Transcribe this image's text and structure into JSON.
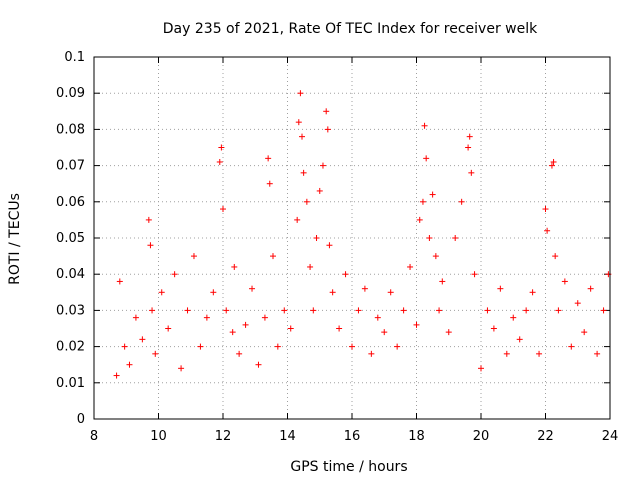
{
  "chart_data": {
    "type": "scatter",
    "title": "Day 235 of 2021, Rate Of TEC Index for receiver welk",
    "xlabel": "GPS time / hours",
    "ylabel": "ROTI / TECUs",
    "xlim": [
      8,
      24
    ],
    "ylim": [
      0,
      0.1
    ],
    "x_ticks": [
      "8",
      "10",
      "12",
      "14",
      "16",
      "18",
      "20",
      "22",
      "24"
    ],
    "y_ticks": [
      "0",
      "0.01",
      "0.02",
      "0.03",
      "0.04",
      "0.05",
      "0.06",
      "0.07",
      "0.08",
      "0.09",
      "0.1"
    ],
    "grid": true,
    "marker": "plus",
    "series": [
      {
        "name": "ROTI",
        "color": "#ff0000",
        "x": [
          8.7,
          8.8,
          8.95,
          9.1,
          9.3,
          9.5,
          9.7,
          9.75,
          9.8,
          9.9,
          10.1,
          10.3,
          10.5,
          10.7,
          10.9,
          11.1,
          11.3,
          11.5,
          11.7,
          11.9,
          11.95,
          12.0,
          12.1,
          12.3,
          12.35,
          12.5,
          12.7,
          12.9,
          13.1,
          13.3,
          13.4,
          13.45,
          13.55,
          13.7,
          13.9,
          14.1,
          14.3,
          14.35,
          14.4,
          14.45,
          14.5,
          14.6,
          14.7,
          14.8,
          14.9,
          15.0,
          15.1,
          15.2,
          15.25,
          15.3,
          15.4,
          15.6,
          15.8,
          16.0,
          16.2,
          16.4,
          16.6,
          16.8,
          17.0,
          17.2,
          17.4,
          17.6,
          17.8,
          18.0,
          18.1,
          18.2,
          18.25,
          18.3,
          18.4,
          18.5,
          18.6,
          18.7,
          18.8,
          19.0,
          19.2,
          19.4,
          19.6,
          19.65,
          19.7,
          19.8,
          20.0,
          20.2,
          20.4,
          20.6,
          20.8,
          21.0,
          21.2,
          21.4,
          21.6,
          21.8,
          22.0,
          22.05,
          22.2,
          22.25,
          22.3,
          22.4,
          22.6,
          22.8,
          23.0,
          23.2,
          23.4,
          23.6,
          23.8,
          23.95
        ],
        "y": [
          0.012,
          0.038,
          0.02,
          0.015,
          0.028,
          0.022,
          0.055,
          0.048,
          0.03,
          0.018,
          0.035,
          0.025,
          0.04,
          0.014,
          0.03,
          0.045,
          0.02,
          0.028,
          0.035,
          0.071,
          0.075,
          0.058,
          0.03,
          0.024,
          0.042,
          0.018,
          0.026,
          0.036,
          0.015,
          0.028,
          0.072,
          0.065,
          0.045,
          0.02,
          0.03,
          0.025,
          0.055,
          0.082,
          0.09,
          0.078,
          0.068,
          0.06,
          0.042,
          0.03,
          0.05,
          0.063,
          0.07,
          0.085,
          0.08,
          0.048,
          0.035,
          0.025,
          0.04,
          0.02,
          0.03,
          0.036,
          0.018,
          0.028,
          0.024,
          0.035,
          0.02,
          0.03,
          0.042,
          0.026,
          0.055,
          0.06,
          0.081,
          0.072,
          0.05,
          0.062,
          0.045,
          0.03,
          0.038,
          0.024,
          0.05,
          0.06,
          0.075,
          0.078,
          0.068,
          0.04,
          0.014,
          0.03,
          0.025,
          0.036,
          0.018,
          0.028,
          0.022,
          0.03,
          0.035,
          0.018,
          0.058,
          0.052,
          0.07,
          0.071,
          0.045,
          0.03,
          0.038,
          0.02,
          0.032,
          0.024,
          0.036,
          0.018,
          0.03,
          0.04
        ]
      }
    ]
  }
}
